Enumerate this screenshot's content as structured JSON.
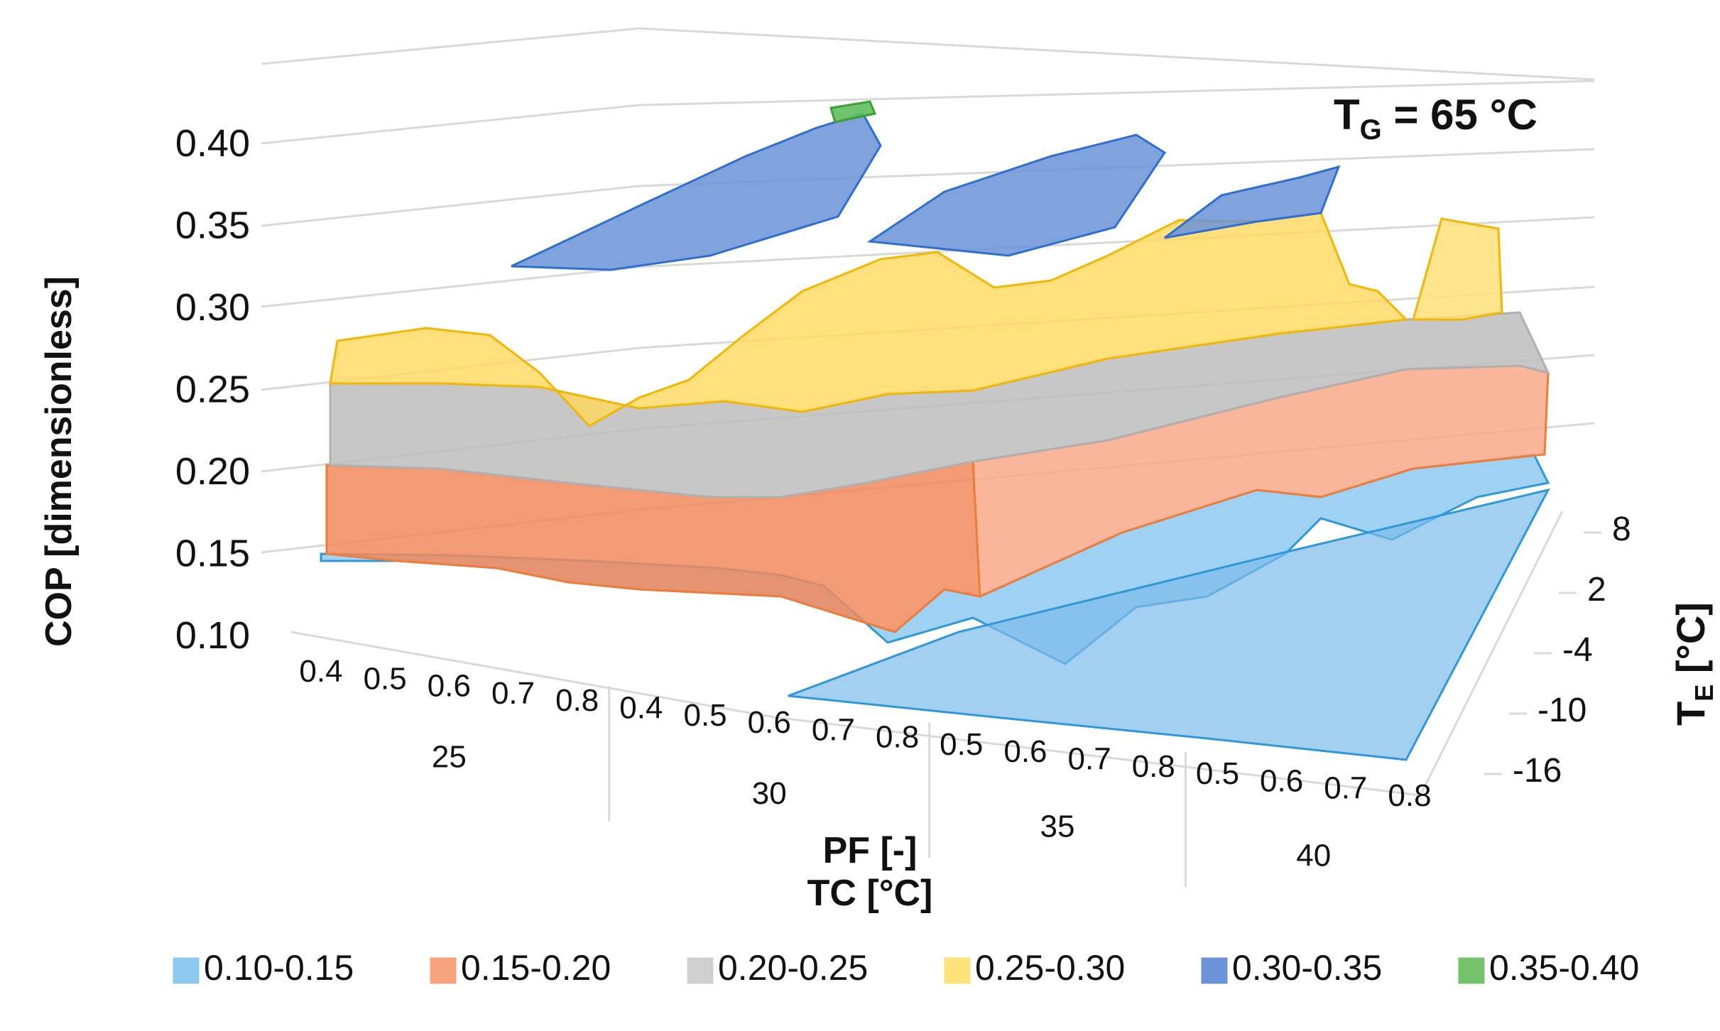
{
  "chart_data": {
    "type": "surface3d",
    "title": "T",
    "title_subscript": "G",
    "title_suffix": " = 65 °C",
    "zlabel": "COP [dimensionless]",
    "zlim": [
      0.1,
      0.4
    ],
    "z_ticks": [
      "0.40",
      "0.35",
      "0.30",
      "0.25",
      "0.20",
      "0.15",
      "0.10"
    ],
    "x_label_primary": "PF [-]",
    "x_label_secondary": "TC [°C]",
    "x_groups": [
      {
        "tc": "25",
        "pf": [
          "0.4",
          "0.5",
          "0.6",
          "0.7",
          "0.8"
        ]
      },
      {
        "tc": "30",
        "pf": [
          "0.4",
          "0.5",
          "0.6",
          "0.7",
          "0.8"
        ]
      },
      {
        "tc": "35",
        "pf": [
          "0.5",
          "0.6",
          "0.7",
          "0.8"
        ]
      },
      {
        "tc": "40",
        "pf": [
          "0.5",
          "0.6",
          "0.7",
          "0.8"
        ]
      }
    ],
    "y_label": "T",
    "y_label_subscript": "E",
    "y_label_suffix": " [°C]",
    "y_ticks": [
      "8",
      "2",
      "-4",
      "-10",
      "-16"
    ],
    "legend": [
      {
        "label": "0.10-0.15",
        "color": "#8ec9f0"
      },
      {
        "label": "0.15-0.20",
        "color": "#f7a37d"
      },
      {
        "label": "0.20-0.25",
        "color": "#cfcfcf"
      },
      {
        "label": "0.25-0.30",
        "color": "#ffe27a"
      },
      {
        "label": "0.30-0.35",
        "color": "#6a93d8"
      },
      {
        "label": "0.35-0.40",
        "color": "#74c36b"
      }
    ],
    "front_row_cop_at_TE_minus16": [
      0.28,
      0.28,
      0.27,
      0.25,
      0.24,
      0.24,
      0.25,
      0.22,
      0.21,
      0.1,
      0.24,
      0.23,
      0.22,
      0.1,
      0.22,
      0.21,
      0.2,
      0.18
    ],
    "back_row_cop_at_TE_8": [
      0.3,
      0.33,
      0.34,
      0.35,
      0.36,
      0.31,
      0.33,
      0.35,
      0.36,
      0.22,
      0.32,
      0.34,
      0.35,
      0.2,
      0.29,
      0.3,
      0.3,
      0.3
    ]
  }
}
